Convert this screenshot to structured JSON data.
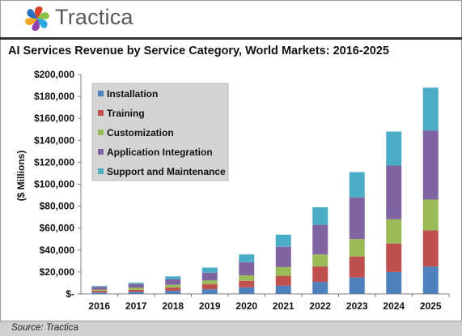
{
  "brand": {
    "name": "Tractica",
    "colors": [
      "#d9412b",
      "#8bc34a",
      "#29abe2",
      "#8e44ad",
      "#f5a623",
      "#2c6fbf"
    ]
  },
  "chart_data": {
    "type": "bar",
    "stacked": true,
    "title": "AI Services Revenue by Service Category, World Markets: 2016-2025",
    "xlabel": "",
    "ylabel": "($ Millions)",
    "ylim": [
      0,
      200000
    ],
    "yticks": [
      0,
      20000,
      40000,
      60000,
      80000,
      100000,
      120000,
      140000,
      160000,
      180000,
      200000
    ],
    "ytick_labels": [
      "$-",
      "$20,000",
      "$40,000",
      "$60,000",
      "$80,000",
      "$100,000",
      "$120,000",
      "$140,000",
      "$160,000",
      "$180,000",
      "$200,000"
    ],
    "categories": [
      "2016",
      "2017",
      "2018",
      "2019",
      "2020",
      "2021",
      "2022",
      "2023",
      "2024",
      "2025"
    ],
    "grid": false,
    "legend_position": "top-left",
    "series": [
      {
        "name": "Installation",
        "color": "#4f81bd",
        "values": [
          1300,
          1800,
          2800,
          4300,
          6000,
          7500,
          11000,
          15000,
          20000,
          25000
        ]
      },
      {
        "name": "Training",
        "color": "#c0504d",
        "values": [
          1500,
          2000,
          3000,
          4500,
          6000,
          9000,
          14000,
          19000,
          26000,
          33000
        ]
      },
      {
        "name": "Customization",
        "color": "#9bbb59",
        "values": [
          1200,
          1800,
          2500,
          3500,
          5000,
          8000,
          11000,
          16000,
          22000,
          28000
        ]
      },
      {
        "name": "Application Integration",
        "color": "#8064a2",
        "values": [
          2500,
          3500,
          5000,
          7000,
          12000,
          18500,
          27000,
          38000,
          49000,
          63000
        ]
      },
      {
        "name": "Support and Maintenance",
        "color": "#4bacc6",
        "values": [
          700,
          1100,
          2700,
          4700,
          7000,
          11000,
          16000,
          23000,
          31000,
          39000
        ]
      }
    ]
  },
  "source": "Source: Tractica"
}
